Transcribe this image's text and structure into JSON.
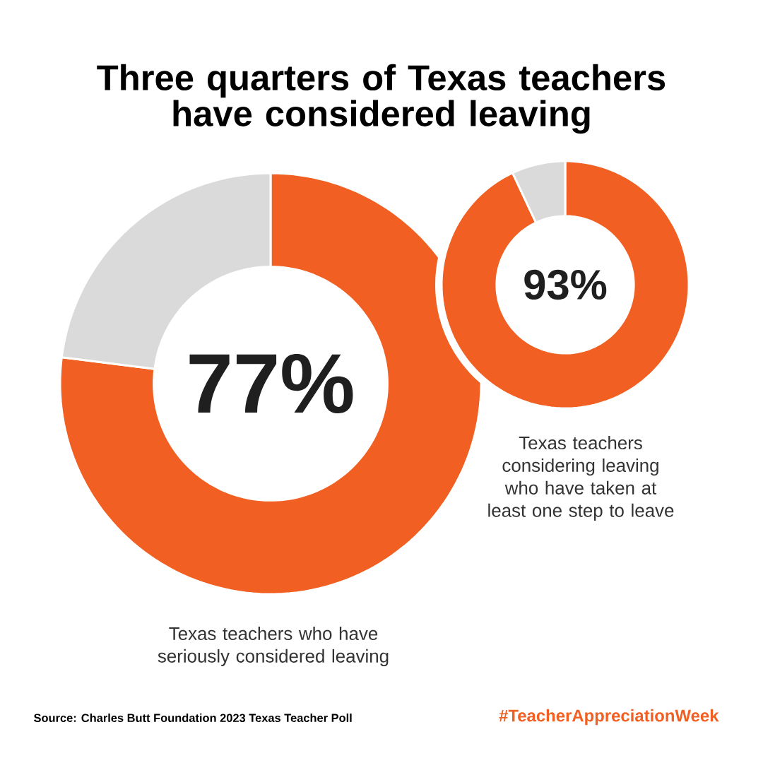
{
  "chart_data": [
    {
      "type": "donut",
      "title": "Three quarters of Texas teachers have considered leaving",
      "categories": [
        null,
        null
      ],
      "values": [
        77,
        23
      ],
      "colors": [
        "#f15f22",
        "#d9dad9"
      ],
      "value_labels": [
        "77%",
        null
      ],
      "annotations": [
        "Texas teachers who have seriously considered leaving",
        "Source: Charles Butt Foundation 2023 Texas Teacher Poll",
        "#TeacherAppreciationWeek"
      ]
    },
    {
      "type": "donut",
      "categories": [
        null,
        null
      ],
      "values": [
        93,
        7
      ],
      "colors": [
        "#f15f22",
        "#d9dad9"
      ],
      "value_labels": [
        "93%",
        null
      ],
      "annotations": [
        "Texas teachers considering leaving who have taken at least one step to leave"
      ]
    }
  ]
}
